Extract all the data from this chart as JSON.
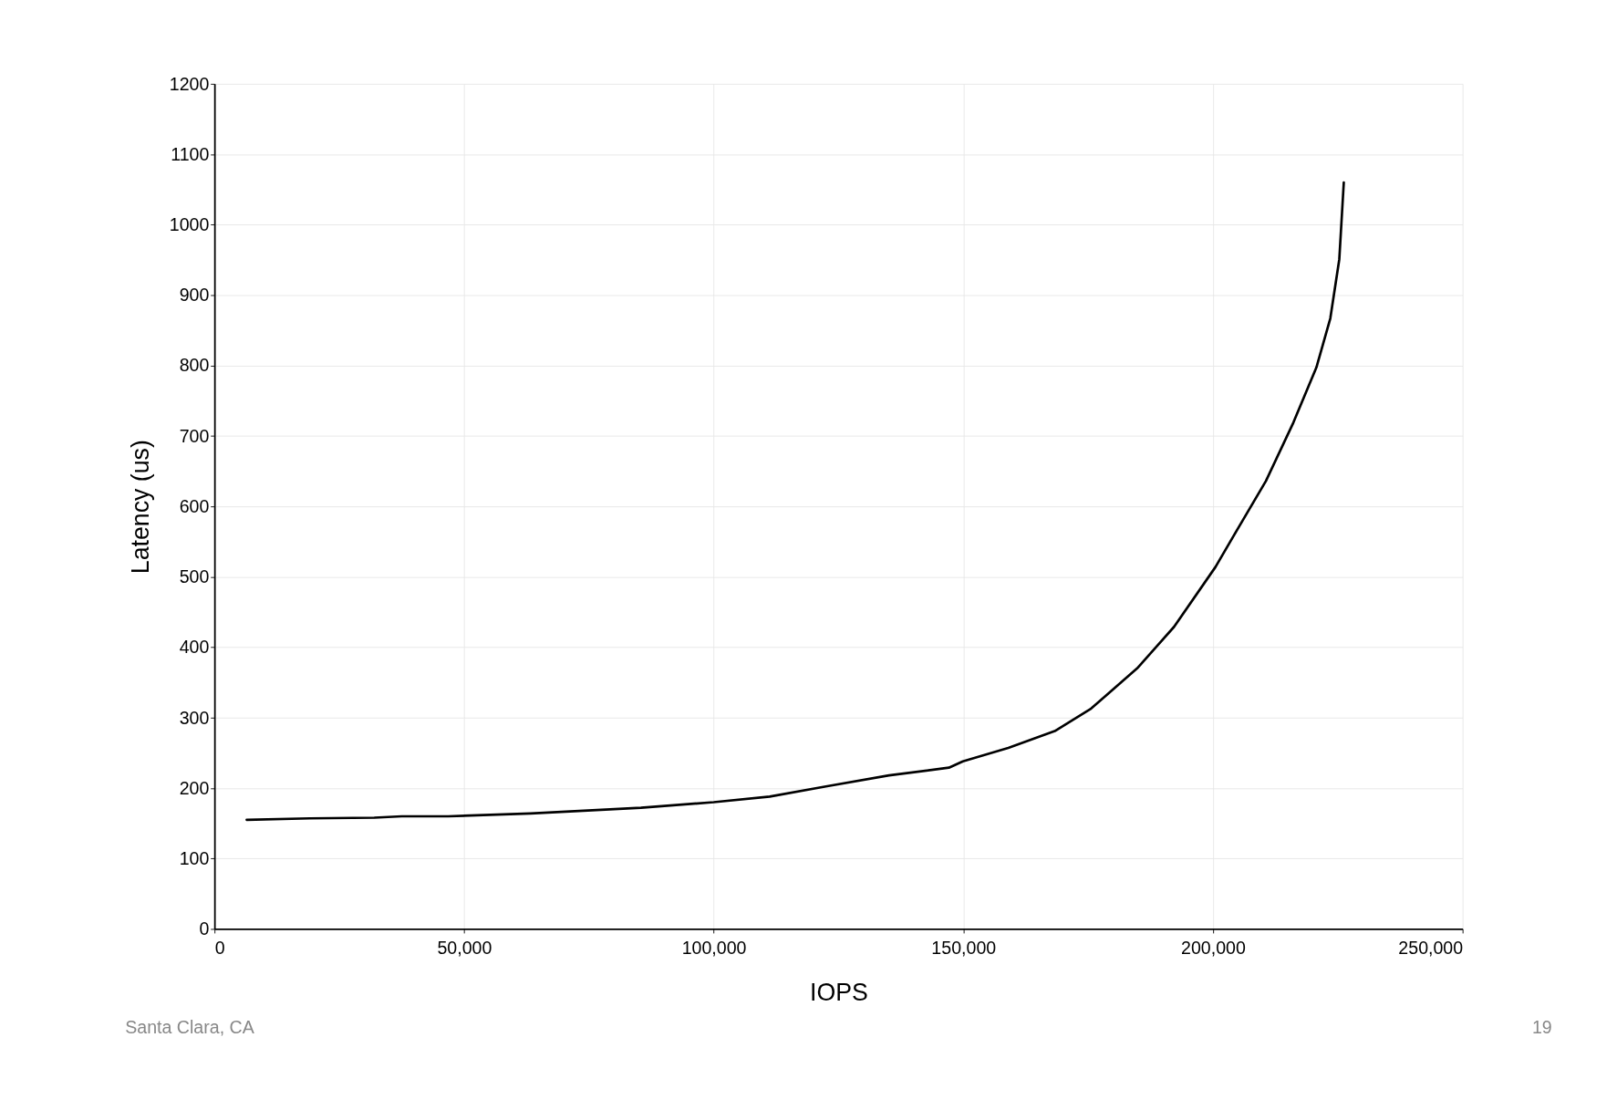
{
  "chart_data": {
    "type": "line",
    "xlabel": "IOPS",
    "ylabel": "Latency (us)",
    "series": [
      {
        "color": "#000000",
        "x": [
          6440,
          19100,
          32000,
          37500,
          46800,
          63300,
          85400,
          100000,
          111200,
          122200,
          135100,
          147100,
          149900,
          159000,
          168300,
          175600,
          184800,
          192200,
          200500,
          204200,
          210600,
          216100,
          220700,
          223500,
          225300,
          226200
        ],
        "values": [
          155,
          157,
          158,
          160,
          160,
          164,
          172,
          180,
          188,
          202,
          218,
          229,
          238,
          257,
          281,
          313,
          370,
          429,
          514,
          559,
          636,
          719,
          797,
          867,
          951,
          1060
        ]
      }
    ],
    "xlim": [
      0,
      250000
    ],
    "ylim": [
      0,
      1200
    ],
    "xticks": [
      0,
      {
        "value": 50000,
        "label": "50,000"
      },
      {
        "value": 100000,
        "label": "100,000"
      },
      {
        "value": 150000,
        "label": "150,000"
      },
      {
        "value": 200000,
        "label": "200,000"
      },
      {
        "value": 250000,
        "label": "250,000"
      }
    ],
    "yticks": [
      0,
      100,
      200,
      300,
      400,
      500,
      600,
      700,
      800,
      900,
      1000,
      1100,
      1200
    ],
    "grid": true,
    "marker": "none",
    "line_style": "solid",
    "annotations": [
      "Santa Clara, CA",
      "19"
    ]
  }
}
